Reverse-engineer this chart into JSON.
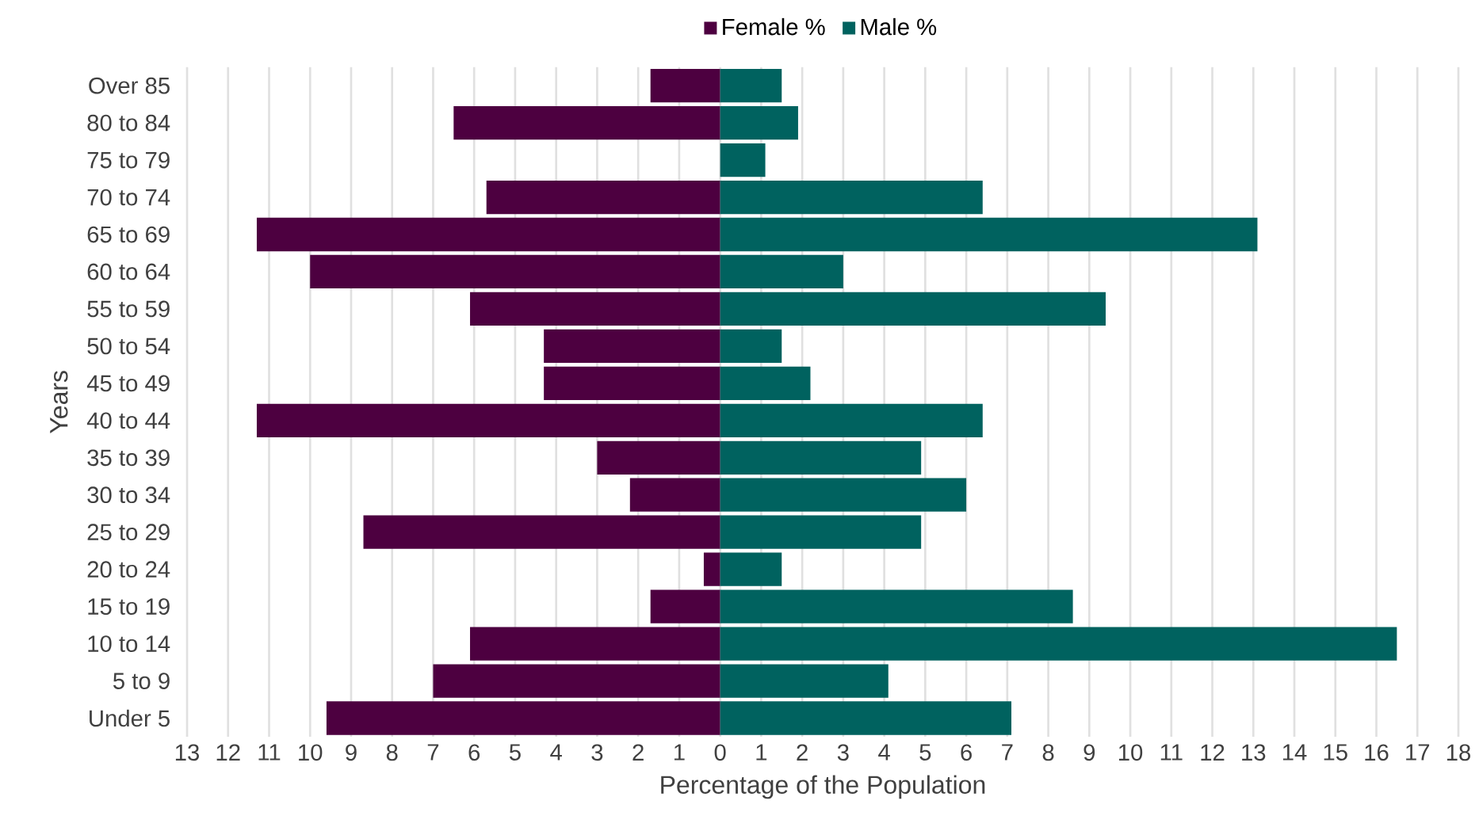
{
  "chart_data": {
    "type": "bar",
    "orientation": "horizontal",
    "xlabel": "Percentage of the Population",
    "ylabel": "Years",
    "categories": [
      "Over 85",
      "80 to 84",
      "75 to 79",
      "70 to 74",
      "65 to 69",
      "60 to 64",
      "55 to 59",
      "50 to 54",
      "45 to 49",
      "40 to 44",
      "35 to 39",
      "30 to 34",
      "25 to 29",
      "20 to 24",
      "15 to 19",
      "10 to 14",
      "5 to 9",
      "Under 5"
    ],
    "series": [
      {
        "name": "Female %",
        "color": "#4d0040",
        "values": [
          -1.7,
          -6.5,
          0,
          -5.7,
          -11.3,
          -10.0,
          -6.1,
          -4.3,
          -4.3,
          -11.3,
          -3.0,
          -2.2,
          -8.7,
          -0.4,
          -1.7,
          -6.1,
          -7.0,
          -9.6
        ]
      },
      {
        "name": "Male %",
        "color": "#00625f",
        "values": [
          1.5,
          1.9,
          1.1,
          6.4,
          13.1,
          3.0,
          9.4,
          1.5,
          2.2,
          6.4,
          4.9,
          6.0,
          4.9,
          1.5,
          8.6,
          16.5,
          4.1,
          7.1
        ]
      }
    ],
    "xlim": [
      -13,
      18
    ],
    "xticks": [
      {
        "value": -13,
        "label": "13"
      },
      {
        "value": -12,
        "label": "12"
      },
      {
        "value": -11,
        "label": "11"
      },
      {
        "value": -10,
        "label": "10"
      },
      {
        "value": -9,
        "label": "9"
      },
      {
        "value": -8,
        "label": "8"
      },
      {
        "value": -7,
        "label": "7"
      },
      {
        "value": -6,
        "label": "6"
      },
      {
        "value": -5,
        "label": "5"
      },
      {
        "value": -4,
        "label": "4"
      },
      {
        "value": -3,
        "label": "3"
      },
      {
        "value": -2,
        "label": "2"
      },
      {
        "value": -1,
        "label": "1"
      },
      0,
      1,
      2,
      3,
      4,
      5,
      6,
      7,
      8,
      9,
      10,
      11,
      12,
      13,
      14,
      15,
      16,
      17,
      18
    ],
    "grid": "x",
    "legend": "top",
    "stacked": true
  }
}
